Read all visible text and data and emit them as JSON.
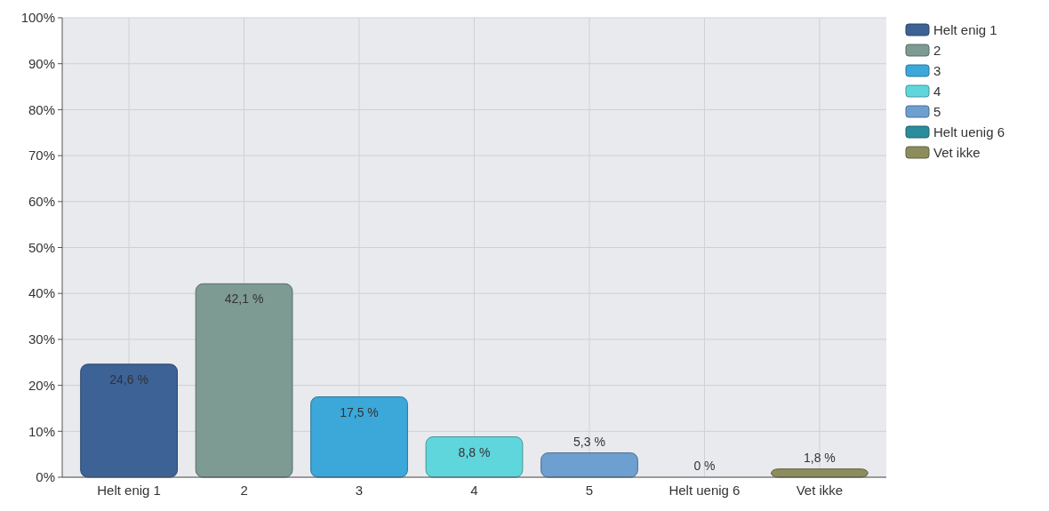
{
  "chart_data": {
    "type": "bar",
    "categories": [
      "Helt enig 1",
      "2",
      "3",
      "4",
      "5",
      "Helt uenig 6",
      "Vet ikke"
    ],
    "series": [
      {
        "name": "Helt enig 1",
        "color": "#3c6296",
        "values": [
          24.6,
          null,
          null,
          null,
          null,
          null,
          null
        ],
        "value_labels": [
          "24,6 %",
          null,
          null,
          null,
          null,
          null,
          null
        ]
      },
      {
        "name": "2",
        "color": "#7d9a93",
        "values": [
          null,
          42.1,
          null,
          null,
          null,
          null,
          null
        ],
        "value_labels": [
          null,
          "42,1 %",
          null,
          null,
          null,
          null,
          null
        ]
      },
      {
        "name": "3",
        "color": "#3ba8d9",
        "values": [
          null,
          null,
          17.5,
          null,
          null,
          null,
          null
        ],
        "value_labels": [
          null,
          null,
          "17,5 %",
          null,
          null,
          null,
          null
        ]
      },
      {
        "name": "4",
        "color": "#5fd6dc",
        "values": [
          null,
          null,
          null,
          8.8,
          null,
          null,
          null
        ],
        "value_labels": [
          null,
          null,
          null,
          "8,8 %",
          null,
          null,
          null
        ]
      },
      {
        "name": "5",
        "color": "#6d9fd1",
        "values": [
          null,
          null,
          null,
          null,
          5.3,
          null,
          null
        ],
        "value_labels": [
          null,
          null,
          null,
          null,
          "5,3 %",
          null,
          null
        ]
      },
      {
        "name": "Helt uenig 6",
        "color": "#2b8c9c",
        "values": [
          null,
          null,
          null,
          null,
          null,
          0,
          null
        ],
        "value_labels": [
          null,
          null,
          null,
          null,
          null,
          "0 %",
          null
        ]
      },
      {
        "name": "Vet ikke",
        "color": "#8c8c5c",
        "values": [
          null,
          null,
          null,
          null,
          null,
          null,
          1.8
        ],
        "value_labels": [
          null,
          null,
          null,
          null,
          null,
          null,
          "1,8 %"
        ]
      }
    ],
    "ylim": [
      0,
      100
    ],
    "yticks": [
      {
        "value": 0,
        "label": "0%"
      },
      {
        "value": 10,
        "label": "10%"
      },
      {
        "value": 20,
        "label": "20%"
      },
      {
        "value": 30,
        "label": "30%"
      },
      {
        "value": 40,
        "label": "40%"
      },
      {
        "value": 50,
        "label": "50%"
      },
      {
        "value": 60,
        "label": "60%"
      },
      {
        "value": 70,
        "label": "70%"
      },
      {
        "value": 80,
        "label": "80%"
      },
      {
        "value": 90,
        "label": "90%"
      },
      {
        "value": 100,
        "label": "100%"
      }
    ],
    "grid": true,
    "legend": "right"
  }
}
